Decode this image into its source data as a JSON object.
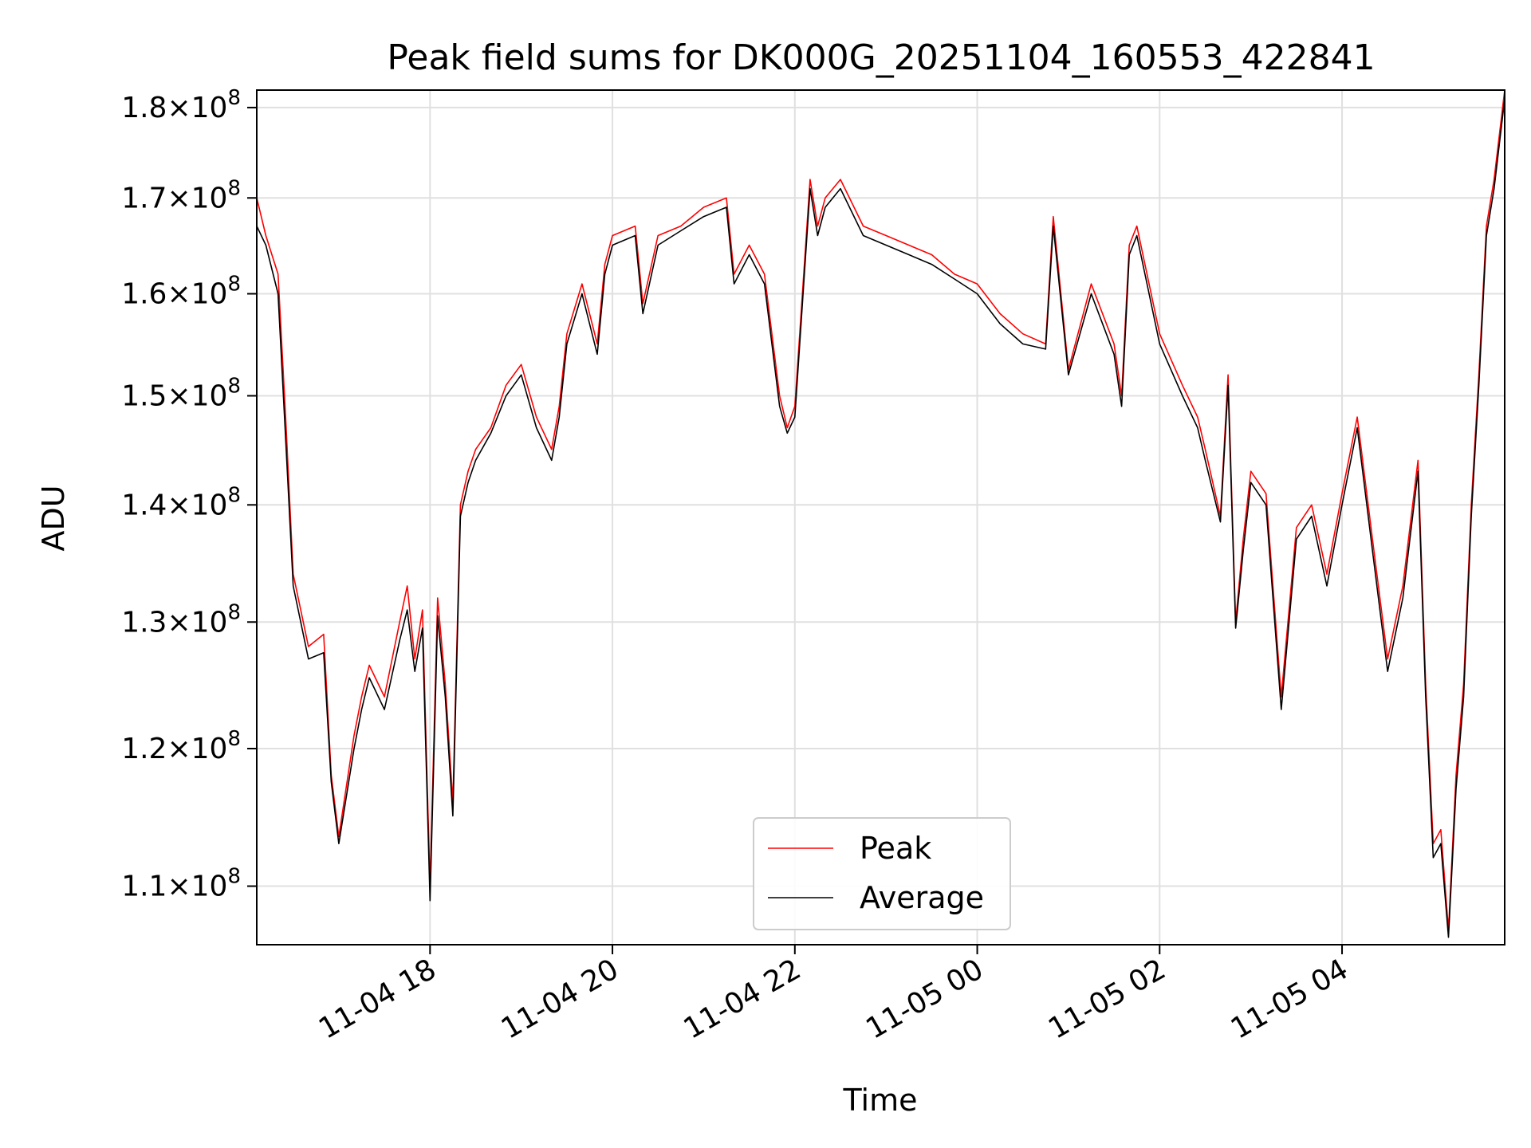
{
  "chart_data": {
    "type": "line",
    "title": "Peak field sums for DK000G_20251104_160553_422841",
    "xlabel": "Time",
    "ylabel": "ADU",
    "y_scale": "log",
    "xlim": [
      "2025-11-04 16:06",
      "2025-11-05 05:47"
    ],
    "ylim": [
      106000000,
      182000000
    ],
    "grid": true,
    "legend_position": "lower-center",
    "x_ticks": [
      {
        "value": "2025-11-04 18:00",
        "label": "11-04 18"
      },
      {
        "value": "2025-11-04 20:00",
        "label": "11-04 20"
      },
      {
        "value": "2025-11-04 22:00",
        "label": "11-04 22"
      },
      {
        "value": "2025-11-05 00:00",
        "label": "11-05 00"
      },
      {
        "value": "2025-11-05 02:00",
        "label": "11-05 02"
      },
      {
        "value": "2025-11-05 04:00",
        "label": "11-05 04"
      }
    ],
    "y_ticks": [
      {
        "value": 110000000,
        "mantissa": "1.1",
        "exp": "8"
      },
      {
        "value": 120000000,
        "mantissa": "1.2",
        "exp": "8"
      },
      {
        "value": 130000000,
        "mantissa": "1.3",
        "exp": "8"
      },
      {
        "value": 140000000,
        "mantissa": "1.4",
        "exp": "8"
      },
      {
        "value": 150000000,
        "mantissa": "1.5",
        "exp": "8"
      },
      {
        "value": 160000000,
        "mantissa": "1.6",
        "exp": "8"
      },
      {
        "value": 170000000,
        "mantissa": "1.7",
        "exp": "8"
      },
      {
        "value": 180000000,
        "mantissa": "1.8",
        "exp": "8"
      }
    ],
    "x": [
      "2025-11-04 16:06",
      "2025-11-04 16:12",
      "2025-11-04 16:20",
      "2025-11-04 16:25",
      "2025-11-04 16:30",
      "2025-11-04 16:40",
      "2025-11-04 16:50",
      "2025-11-04 16:55",
      "2025-11-04 17:00",
      "2025-11-04 17:10",
      "2025-11-04 17:15",
      "2025-11-04 17:20",
      "2025-11-04 17:30",
      "2025-11-04 17:40",
      "2025-11-04 17:45",
      "2025-11-04 17:50",
      "2025-11-04 17:55",
      "2025-11-04 18:00",
      "2025-11-04 18:05",
      "2025-11-04 18:10",
      "2025-11-04 18:15",
      "2025-11-04 18:20",
      "2025-11-04 18:25",
      "2025-11-04 18:30",
      "2025-11-04 18:40",
      "2025-11-04 18:50",
      "2025-11-04 19:00",
      "2025-11-04 19:10",
      "2025-11-04 19:20",
      "2025-11-04 19:25",
      "2025-11-04 19:30",
      "2025-11-04 19:40",
      "2025-11-04 19:50",
      "2025-11-04 19:55",
      "2025-11-04 20:00",
      "2025-11-04 20:15",
      "2025-11-04 20:20",
      "2025-11-04 20:30",
      "2025-11-04 20:45",
      "2025-11-04 21:00",
      "2025-11-04 21:15",
      "2025-11-04 21:20",
      "2025-11-04 21:30",
      "2025-11-04 21:40",
      "2025-11-04 21:50",
      "2025-11-04 21:55",
      "2025-11-04 22:00",
      "2025-11-04 22:10",
      "2025-11-04 22:15",
      "2025-11-04 22:20",
      "2025-11-04 22:30",
      "2025-11-04 22:45",
      "2025-11-04 23:00",
      "2025-11-04 23:15",
      "2025-11-04 23:30",
      "2025-11-04 23:45",
      "2025-11-05 00:00",
      "2025-11-05 00:15",
      "2025-11-05 00:30",
      "2025-11-05 00:45",
      "2025-11-05 00:50",
      "2025-11-05 01:00",
      "2025-11-05 01:15",
      "2025-11-05 01:30",
      "2025-11-05 01:35",
      "2025-11-05 01:40",
      "2025-11-05 01:45",
      "2025-11-05 02:00",
      "2025-11-05 02:15",
      "2025-11-05 02:25",
      "2025-11-05 02:30",
      "2025-11-05 02:40",
      "2025-11-05 02:45",
      "2025-11-05 02:50",
      "2025-11-05 02:55",
      "2025-11-05 03:00",
      "2025-11-05 03:10",
      "2025-11-05 03:20",
      "2025-11-05 03:30",
      "2025-11-05 03:40",
      "2025-11-05 03:50",
      "2025-11-05 04:00",
      "2025-11-05 04:10",
      "2025-11-05 04:20",
      "2025-11-05 04:30",
      "2025-11-05 04:40",
      "2025-11-05 04:50",
      "2025-11-05 04:55",
      "2025-11-05 05:00",
      "2025-11-05 05:05",
      "2025-11-05 05:10",
      "2025-11-05 05:15",
      "2025-11-05 05:20",
      "2025-11-05 05:25",
      "2025-11-05 05:30",
      "2025-11-05 05:35",
      "2025-11-05 05:40",
      "2025-11-05 05:47"
    ],
    "series": [
      {
        "name": "Peak",
        "color": "#ff0000",
        "values": [
          170000000,
          166000000,
          162000000,
          148000000,
          134000000,
          128000000,
          129000000,
          118000000,
          113500000,
          121000000,
          124000000,
          126500000,
          124000000,
          130000000,
          133000000,
          127000000,
          131000000,
          110000000,
          132000000,
          125000000,
          116000000,
          140000000,
          143000000,
          145000000,
          147000000,
          151000000,
          153000000,
          148000000,
          145000000,
          149000000,
          156000000,
          161000000,
          155000000,
          163000000,
          166000000,
          167000000,
          159000000,
          166000000,
          167000000,
          169000000,
          170000000,
          162000000,
          165000000,
          162000000,
          150000000,
          147000000,
          149000000,
          172000000,
          167000000,
          170000000,
          172000000,
          167000000,
          166000000,
          165000000,
          164000000,
          162000000,
          161000000,
          158000000,
          156000000,
          155000000,
          168000000,
          152500000,
          161000000,
          155000000,
          150000000,
          165000000,
          167000000,
          156000000,
          151000000,
          148000000,
          145000000,
          139000000,
          152000000,
          130000000,
          137000000,
          143000000,
          141000000,
          124000000,
          138000000,
          140000000,
          134000000,
          141000000,
          148000000,
          137000000,
          127000000,
          133000000,
          144000000,
          125000000,
          113000000,
          114000000,
          107000000,
          118000000,
          125000000,
          140000000,
          152000000,
          167000000,
          172000000,
          182000000
        ]
      },
      {
        "name": "Average",
        "color": "#000000",
        "values": [
          167000000,
          165000000,
          160000000,
          146000000,
          133000000,
          127000000,
          127500000,
          117500000,
          113000000,
          120000000,
          123000000,
          125500000,
          123000000,
          128500000,
          131000000,
          126000000,
          129500000,
          109000000,
          130500000,
          124000000,
          115000000,
          139000000,
          142000000,
          144000000,
          146500000,
          150000000,
          152000000,
          147000000,
          144000000,
          148000000,
          155000000,
          160000000,
          154000000,
          162000000,
          165000000,
          166000000,
          158000000,
          165000000,
          166500000,
          168000000,
          169000000,
          161000000,
          164000000,
          161000000,
          149000000,
          146500000,
          148000000,
          171000000,
          166000000,
          169000000,
          171000000,
          166000000,
          165000000,
          164000000,
          163000000,
          161500000,
          160000000,
          157000000,
          155000000,
          154500000,
          167000000,
          152000000,
          160000000,
          154000000,
          149000000,
          164000000,
          166000000,
          155000000,
          150000000,
          147000000,
          144000000,
          138500000,
          151000000,
          129500000,
          136000000,
          142000000,
          140000000,
          123000000,
          137000000,
          139000000,
          133000000,
          140000000,
          147000000,
          136000000,
          126000000,
          132000000,
          143000000,
          124000000,
          112000000,
          113000000,
          106500000,
          117000000,
          124000000,
          139000000,
          151000000,
          166000000,
          171000000,
          181000000
        ]
      }
    ]
  }
}
